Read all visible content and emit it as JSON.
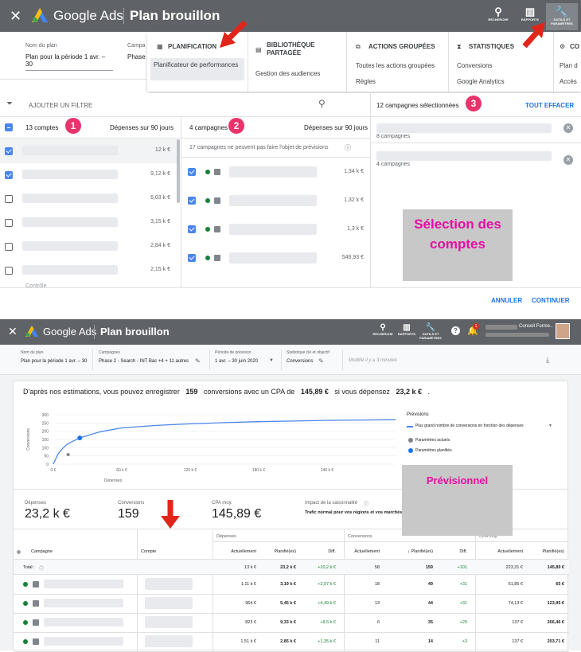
{
  "top": {
    "close": "✕",
    "brand": "Google Ads",
    "plan_title": "Plan brouillon",
    "search_label": "RECHERCHE",
    "reports_label": "RAPPORTS",
    "tools_label": "OUTILS ET PARAMÈTRES"
  },
  "plan_fields": {
    "name_label": "Nom du plan",
    "name_value": "Plan pour la période 1 avr. – 30",
    "campaign_label": "Campa",
    "campaign_value": "Phase"
  },
  "tools_menu": {
    "planning": "PLANIFICATION",
    "planner": "Planificateur de performances",
    "library": "BIBLIOTHÈQUE PARTAGÉE",
    "audiences": "Gestion des audiences",
    "bulk": "ACTIONS GROUPÉES",
    "all_bulk": "Toutes les actions groupées",
    "rules": "Règles",
    "stats": "STATISTIQUES",
    "conversions": "Conversions",
    "analytics": "Google Analytics",
    "co": "CO",
    "plan_d": "Plan d",
    "acces": "Accès"
  },
  "selector": {
    "filter": "AJOUTER UN FILTRE",
    "accounts_count": "13 comptes",
    "spend_90": "Dépenses sur 90 jours",
    "accounts_values": [
      "12 k €",
      "9,12 k €",
      "6,03 k €",
      "3,15 k €",
      "2,84 k €",
      "2,15 k €"
    ],
    "accounts_checked": [
      true,
      true,
      false,
      false,
      false,
      false
    ],
    "more": "Contrôle",
    "campaigns_count": "4 campagnes",
    "spend_90_b": "Dépenses sur 90 jours",
    "not_forecast": "17 campagnes ne peuvent pas faire l'objet de prévisions",
    "campaign_values": [
      "1,34 k €",
      "1,32 k €",
      "1,3 k €",
      "546,93 €"
    ],
    "selected": "12 campagnes sélectionnées",
    "clear": "TOUT EFFACER",
    "sel_sub1": "8 campagnes",
    "sel_sub2": "4 campagnes",
    "cancel": "ANNULER",
    "continue": "CONTINUER",
    "badges": [
      "1",
      "2",
      "3"
    ],
    "overlay": "Sélection des comptes"
  },
  "bar2": {
    "user": "Conseil Forme..",
    "notif": "1",
    "name_label": "Nom du plan",
    "name_value": "Plan pour la période 1 avr. – 30",
    "camp_label": "Campagnes",
    "camp_value": "Phase 2 - Search - INT Bac +4 + 11 autres",
    "period_label": "Période de prévision",
    "period_value": "1 avr. – 30 juin 2020",
    "stat_label": "Statistique clé et objectif",
    "stat_value": "Conversions",
    "modified": "Modifié il y a 3 minutes"
  },
  "forecast": {
    "sentence_a": "D'après nos estimations, vous pouvez enregistrer",
    "conv": "159",
    "sentence_b": "conversions avec un CPA de",
    "cpa": "145,89 €",
    "sentence_c": "si vous dépensez",
    "spend": "23,2 k €",
    "sentence_d": ".",
    "legend_title": "Prévisions",
    "legend_line": "Plus grand nombre de conversions en fonction des dépenses",
    "legend_current": "Paramètres actuels",
    "legend_planned": "Paramètres planifiés",
    "overlay": "Prévisionnel",
    "kpi": [
      {
        "label": "Dépenses",
        "value": "23,2 k €"
      },
      {
        "label": "Conversions",
        "value": "159"
      },
      {
        "label": "CPA moy.",
        "value": "145,89 €"
      },
      {
        "label": "Impact de la saisonnalité",
        "value": "Trafic normal pour vos régions et vos marchés cibles"
      }
    ]
  },
  "chart_data": {
    "type": "line",
    "xlabel": "Dépenses",
    "ylabel": "Conversions",
    "x_ticks": [
      "0 €",
      "60 k €",
      "120 k €",
      "180 k €",
      "240 k €"
    ],
    "y_ticks": [
      "0",
      "50",
      "100",
      "150",
      "200",
      "250",
      "300"
    ],
    "xlim": [
      0,
      300000
    ],
    "ylim": [
      0,
      300
    ],
    "series": [
      {
        "name": "Plus grand nombre de conversions en fonction des dépenses",
        "x": [
          0,
          4000,
          8000,
          12000,
          16000,
          23200,
          40000,
          60000,
          90000,
          120000,
          150000,
          180000,
          210000,
          240000,
          270000,
          300000
        ],
        "y": [
          0,
          60,
          95,
          120,
          135,
          159,
          195,
          220,
          235,
          245,
          252,
          258,
          262,
          266,
          268,
          270
        ]
      }
    ],
    "points": [
      {
        "name": "Paramètres actuels",
        "x": 13000,
        "y": 58
      },
      {
        "name": "Paramètres planifiés",
        "x": 23200,
        "y": 159
      }
    ]
  },
  "table": {
    "groups": [
      "Dépenses",
      "Conversions",
      "CPA moy."
    ],
    "headers": [
      "Campagne",
      "Compte",
      "Actuellement",
      "Planifié(es)",
      "Diff.",
      "Actuellement",
      "↓ Planifié(es)",
      "Diff.",
      "Actuellement",
      "Planifié(es)"
    ],
    "total_label": "Total :",
    "total": [
      "13 k €",
      "23,2 k €",
      "+10,2 k €",
      "58",
      "159",
      "+101",
      "223,31 €",
      "145,89 €"
    ],
    "rows": [
      [
        "1,11 k €",
        "3,19 k €",
        "+2,07 k €",
        "18",
        "49",
        "+31",
        "61,85 €",
        "65 €"
      ],
      [
        "964 €",
        "5,45 k €",
        "+4,49 k €",
        "13",
        "44",
        "+31",
        "74,13 €",
        "123,95 €"
      ],
      [
        "823 €",
        "9,33 k €",
        "+8,5 k €",
        "6",
        "35",
        "+29",
        "137 €",
        "266,46 €"
      ],
      [
        "1,51 k €",
        "2,85 k €",
        "+1,35 k €",
        "11",
        "14",
        "+3",
        "137 €",
        "203,71 €"
      ]
    ]
  },
  "colors": {
    "accent": "#1a73e8",
    "badge": "#e8336b",
    "overlay_text": "#e60ea3",
    "topbar": "#5f6368",
    "arrow": "#e1251b"
  }
}
